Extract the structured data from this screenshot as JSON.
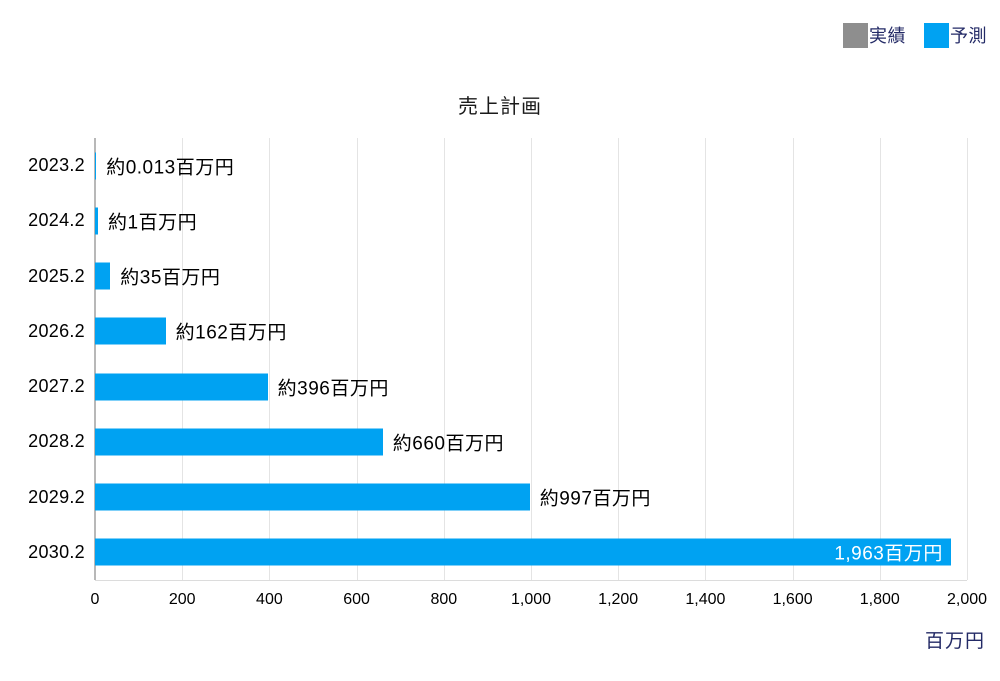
{
  "chart_data": {
    "type": "bar",
    "orientation": "horizontal",
    "title": "売上計画",
    "categories": [
      "2023.2",
      "2024.2",
      "2025.2",
      "2026.2",
      "2027.2",
      "2028.2",
      "2029.2",
      "2030.2"
    ],
    "values": [
      0.013,
      1,
      35,
      162,
      396,
      660,
      997,
      1963
    ],
    "bar_labels": [
      "約0.013百万円",
      "約1百万円",
      "約35百万円",
      "約162百万円",
      "約396百万円",
      "約660百万円",
      "約997百万円",
      "1,963百万円"
    ],
    "xlabel": "百万円",
    "xlim": [
      0,
      2000
    ],
    "x_ticks": [
      "0",
      "200",
      "400",
      "600",
      "800",
      "1,000",
      "1,200",
      "1,400",
      "1,600",
      "1,800",
      "2,000"
    ],
    "grid": true,
    "legend_position": "top-right",
    "legend": [
      {
        "label": "実績",
        "color": "#8e8e8e"
      },
      {
        "label": "予測",
        "color": "#00a2f2"
      }
    ],
    "colors": {
      "bar": "#00a2f2",
      "gridline": "#e4e4e4",
      "axis_line": "#b8b8b8",
      "text": "#000000",
      "navy": "#232a66",
      "inside_label": "#ffffff"
    }
  }
}
